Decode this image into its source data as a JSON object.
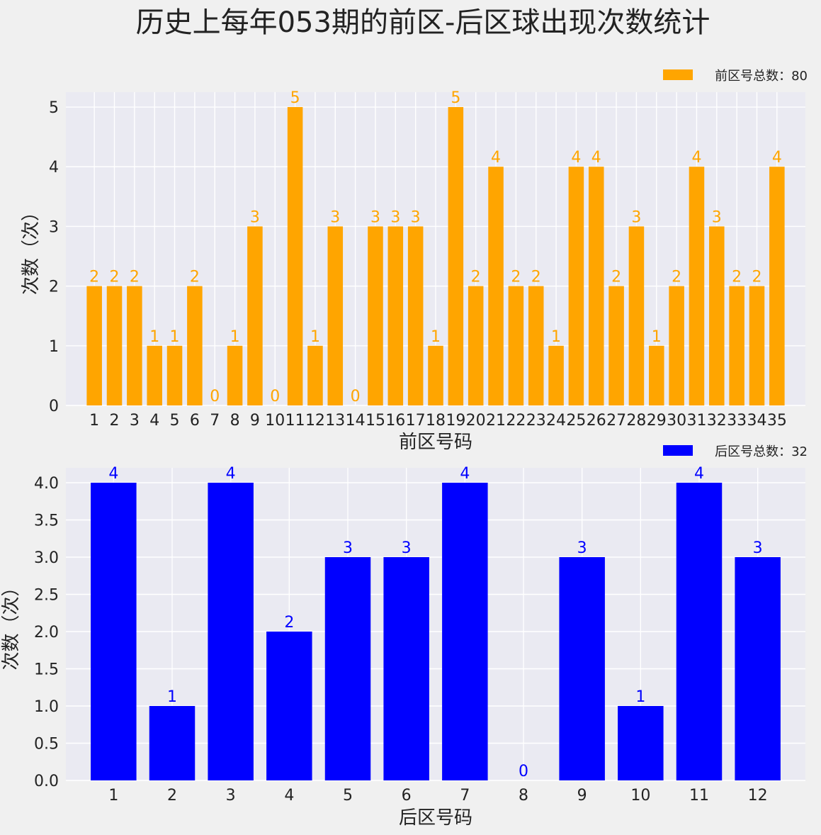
{
  "title": "历史上每年053期的前区-后区球出现次数统计",
  "chart_data": [
    {
      "type": "bar",
      "xlabel": "前区号码",
      "ylabel": "次数（次）",
      "legend": "前区号总数：80",
      "legend_placement": "top-right",
      "color": "#FFA500",
      "categories": [
        "1",
        "2",
        "3",
        "4",
        "5",
        "6",
        "7",
        "8",
        "9",
        "10",
        "11",
        "12",
        "13",
        "14",
        "15",
        "16",
        "17",
        "18",
        "19",
        "20",
        "21",
        "22",
        "23",
        "24",
        "25",
        "26",
        "27",
        "28",
        "29",
        "30",
        "31",
        "32",
        "33",
        "34",
        "35"
      ],
      "values": [
        2,
        2,
        2,
        1,
        1,
        2,
        0,
        1,
        3,
        0,
        5,
        1,
        3,
        0,
        3,
        3,
        3,
        1,
        5,
        2,
        4,
        2,
        2,
        1,
        4,
        4,
        2,
        3,
        1,
        2,
        4,
        3,
        2,
        2,
        4
      ],
      "yticks": [
        "0",
        "1",
        "2",
        "3",
        "4",
        "5"
      ],
      "ylim": [
        0,
        5.25
      ],
      "grid": true
    },
    {
      "type": "bar",
      "xlabel": "后区号码",
      "ylabel": "次数（次）",
      "legend": "后区号总数：32",
      "legend_placement": "top-right",
      "color": "#0000FF",
      "categories": [
        "1",
        "2",
        "3",
        "4",
        "5",
        "6",
        "7",
        "8",
        "9",
        "10",
        "11",
        "12"
      ],
      "values": [
        4,
        1,
        4,
        2,
        3,
        3,
        4,
        0,
        3,
        1,
        4,
        3
      ],
      "yticks": [
        "0.0",
        "0.5",
        "1.0",
        "1.5",
        "2.0",
        "2.5",
        "3.0",
        "3.5",
        "4.0"
      ],
      "ylim": [
        0,
        4.2
      ],
      "grid": true
    }
  ]
}
